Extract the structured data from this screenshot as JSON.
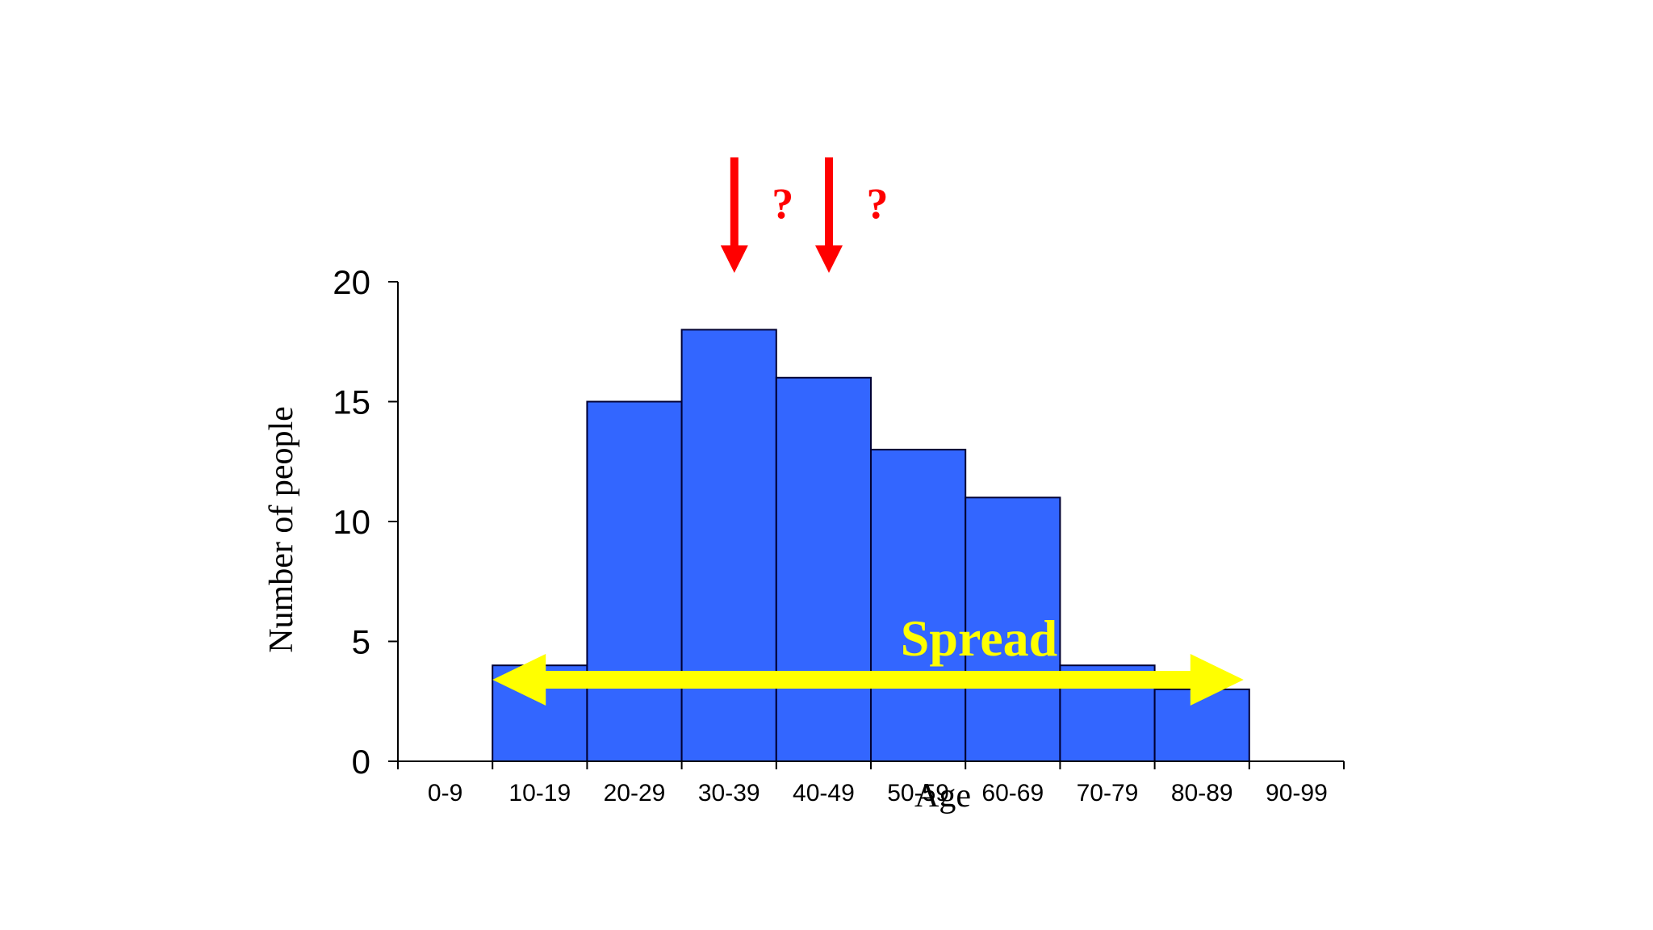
{
  "chart_data": {
    "type": "bar",
    "categories": [
      "0-9",
      "10-19",
      "20-29",
      "30-39",
      "40-49",
      "50-59",
      "60-69",
      "70-79",
      "80-89",
      "90-99"
    ],
    "values": [
      0,
      4,
      15,
      18,
      16,
      13,
      11,
      4,
      3,
      0
    ],
    "xlabel": "Age",
    "ylabel": "Number of people",
    "ylim": [
      0,
      20
    ],
    "yticks": [
      0,
      5,
      10,
      15,
      20
    ],
    "grid": false,
    "bar_color": "#3366ff",
    "bar_edge_color": "#000033",
    "annotations": {
      "markers": [
        {
          "category": "30-39",
          "label": "?",
          "color": "#ff0000"
        },
        {
          "category": "40-49",
          "label": "?",
          "color": "#ff0000"
        }
      ],
      "spread": {
        "label": "Spread",
        "from_category": "10-19",
        "to_category": "80-89",
        "color": "#ffff00"
      }
    }
  }
}
